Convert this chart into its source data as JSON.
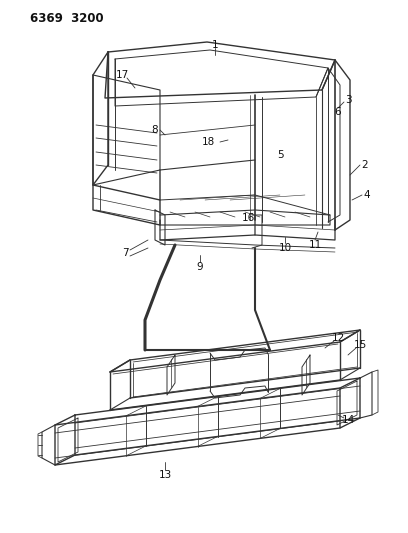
{
  "title": "6369  3200",
  "bg_color": "#ffffff",
  "line_color": "#333333",
  "text_color": "#111111",
  "fig_width": 4.08,
  "fig_height": 5.33,
  "dpi": 100
}
